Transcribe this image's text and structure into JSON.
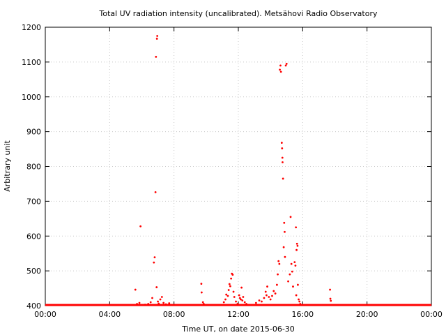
{
  "chart_data": {
    "type": "scatter",
    "title": "Total UV radiation intensity (uncalibrated). Metsähovi Radio Observatory",
    "xlabel": "Time UT, on date 2015-06-30",
    "ylabel": "Arbitrary unit",
    "xlim": [
      0,
      24
    ],
    "ylim": [
      400,
      1200
    ],
    "x_unit": "hours UT",
    "grid": true,
    "legend": "none",
    "marker_color": "#ff0000",
    "x_ticks": [
      {
        "value": 0,
        "label": "00:00"
      },
      {
        "value": 4,
        "label": "04:00"
      },
      {
        "value": 8,
        "label": "08:00"
      },
      {
        "value": 12,
        "label": "12:00"
      },
      {
        "value": 16,
        "label": "16:00"
      },
      {
        "value": 20,
        "label": "20:00"
      },
      {
        "value": 24,
        "label": "00:00"
      }
    ],
    "y_ticks": [
      {
        "value": 400,
        "label": "400"
      },
      {
        "value": 500,
        "label": "500"
      },
      {
        "value": 600,
        "label": "600"
      },
      {
        "value": 700,
        "label": "700"
      },
      {
        "value": 800,
        "label": "800"
      },
      {
        "value": 900,
        "label": "900"
      },
      {
        "value": 1000,
        "label": "1000"
      },
      {
        "value": 1100,
        "label": "1100"
      },
      {
        "value": 1200,
        "label": "1200"
      }
    ],
    "baseline": {
      "y": 400,
      "x_range": [
        0,
        24
      ]
    },
    "series": [
      {
        "points": [
          [
            5.6,
            446
          ],
          [
            5.7,
            405
          ],
          [
            5.85,
            408
          ],
          [
            5.92,
            628
          ],
          [
            6.2,
            403
          ],
          [
            6.4,
            405
          ],
          [
            6.55,
            410
          ],
          [
            6.65,
            422
          ],
          [
            6.75,
            524
          ],
          [
            6.8,
            539
          ],
          [
            6.85,
            726
          ],
          [
            6.88,
            1115
          ],
          [
            6.92,
            453
          ],
          [
            6.94,
            1167
          ],
          [
            6.96,
            1175
          ],
          [
            7.0,
            412
          ],
          [
            7.05,
            406
          ],
          [
            7.15,
            418
          ],
          [
            7.25,
            425
          ],
          [
            7.35,
            408
          ],
          [
            7.5,
            404
          ],
          [
            7.7,
            407
          ],
          [
            9.7,
            463
          ],
          [
            9.72,
            438
          ],
          [
            9.8,
            410
          ],
          [
            9.85,
            405
          ],
          [
            11.1,
            410
          ],
          [
            11.2,
            418
          ],
          [
            11.25,
            432
          ],
          [
            11.35,
            428
          ],
          [
            11.4,
            445
          ],
          [
            11.45,
            462
          ],
          [
            11.5,
            456
          ],
          [
            11.55,
            478
          ],
          [
            11.6,
            492
          ],
          [
            11.65,
            489
          ],
          [
            11.7,
            440
          ],
          [
            11.75,
            425
          ],
          [
            11.85,
            412
          ],
          [
            11.95,
            405
          ],
          [
            12.05,
            430
          ],
          [
            12.1,
            422
          ],
          [
            12.15,
            418
          ],
          [
            12.2,
            452
          ],
          [
            12.25,
            415
          ],
          [
            12.3,
            425
          ],
          [
            12.4,
            410
          ],
          [
            12.5,
            405
          ],
          [
            13.1,
            408
          ],
          [
            13.3,
            415
          ],
          [
            13.45,
            412
          ],
          [
            13.6,
            422
          ],
          [
            13.7,
            440
          ],
          [
            13.75,
            430
          ],
          [
            13.8,
            455
          ],
          [
            13.9,
            425
          ],
          [
            14.0,
            418
          ],
          [
            14.1,
            428
          ],
          [
            14.2,
            442
          ],
          [
            14.3,
            435
          ],
          [
            14.4,
            460
          ],
          [
            14.45,
            490
          ],
          [
            14.5,
            528
          ],
          [
            14.55,
            520
          ],
          [
            14.58,
            1078
          ],
          [
            14.62,
            1090
          ],
          [
            14.65,
            1072
          ],
          [
            14.7,
            868
          ],
          [
            14.72,
            852
          ],
          [
            14.74,
            825
          ],
          [
            14.75,
            812
          ],
          [
            14.78,
            765
          ],
          [
            14.82,
            568
          ],
          [
            14.85,
            638
          ],
          [
            14.88,
            612
          ],
          [
            14.95,
            1090
          ],
          [
            15.0,
            1095
          ],
          [
            14.9,
            540
          ],
          [
            15.1,
            470
          ],
          [
            15.2,
            490
          ],
          [
            15.25,
            655
          ],
          [
            15.3,
            520
          ],
          [
            15.35,
            498
          ],
          [
            15.4,
            455
          ],
          [
            15.5,
            525
          ],
          [
            15.55,
            515
          ],
          [
            15.58,
            625
          ],
          [
            15.62,
            560
          ],
          [
            15.65,
            578
          ],
          [
            15.68,
            572
          ],
          [
            15.7,
            460
          ],
          [
            15.6,
            430
          ],
          [
            15.75,
            418
          ],
          [
            15.8,
            412
          ],
          [
            15.85,
            405
          ],
          [
            17.7,
            446
          ],
          [
            17.72,
            420
          ],
          [
            17.75,
            414
          ]
        ]
      }
    ]
  }
}
